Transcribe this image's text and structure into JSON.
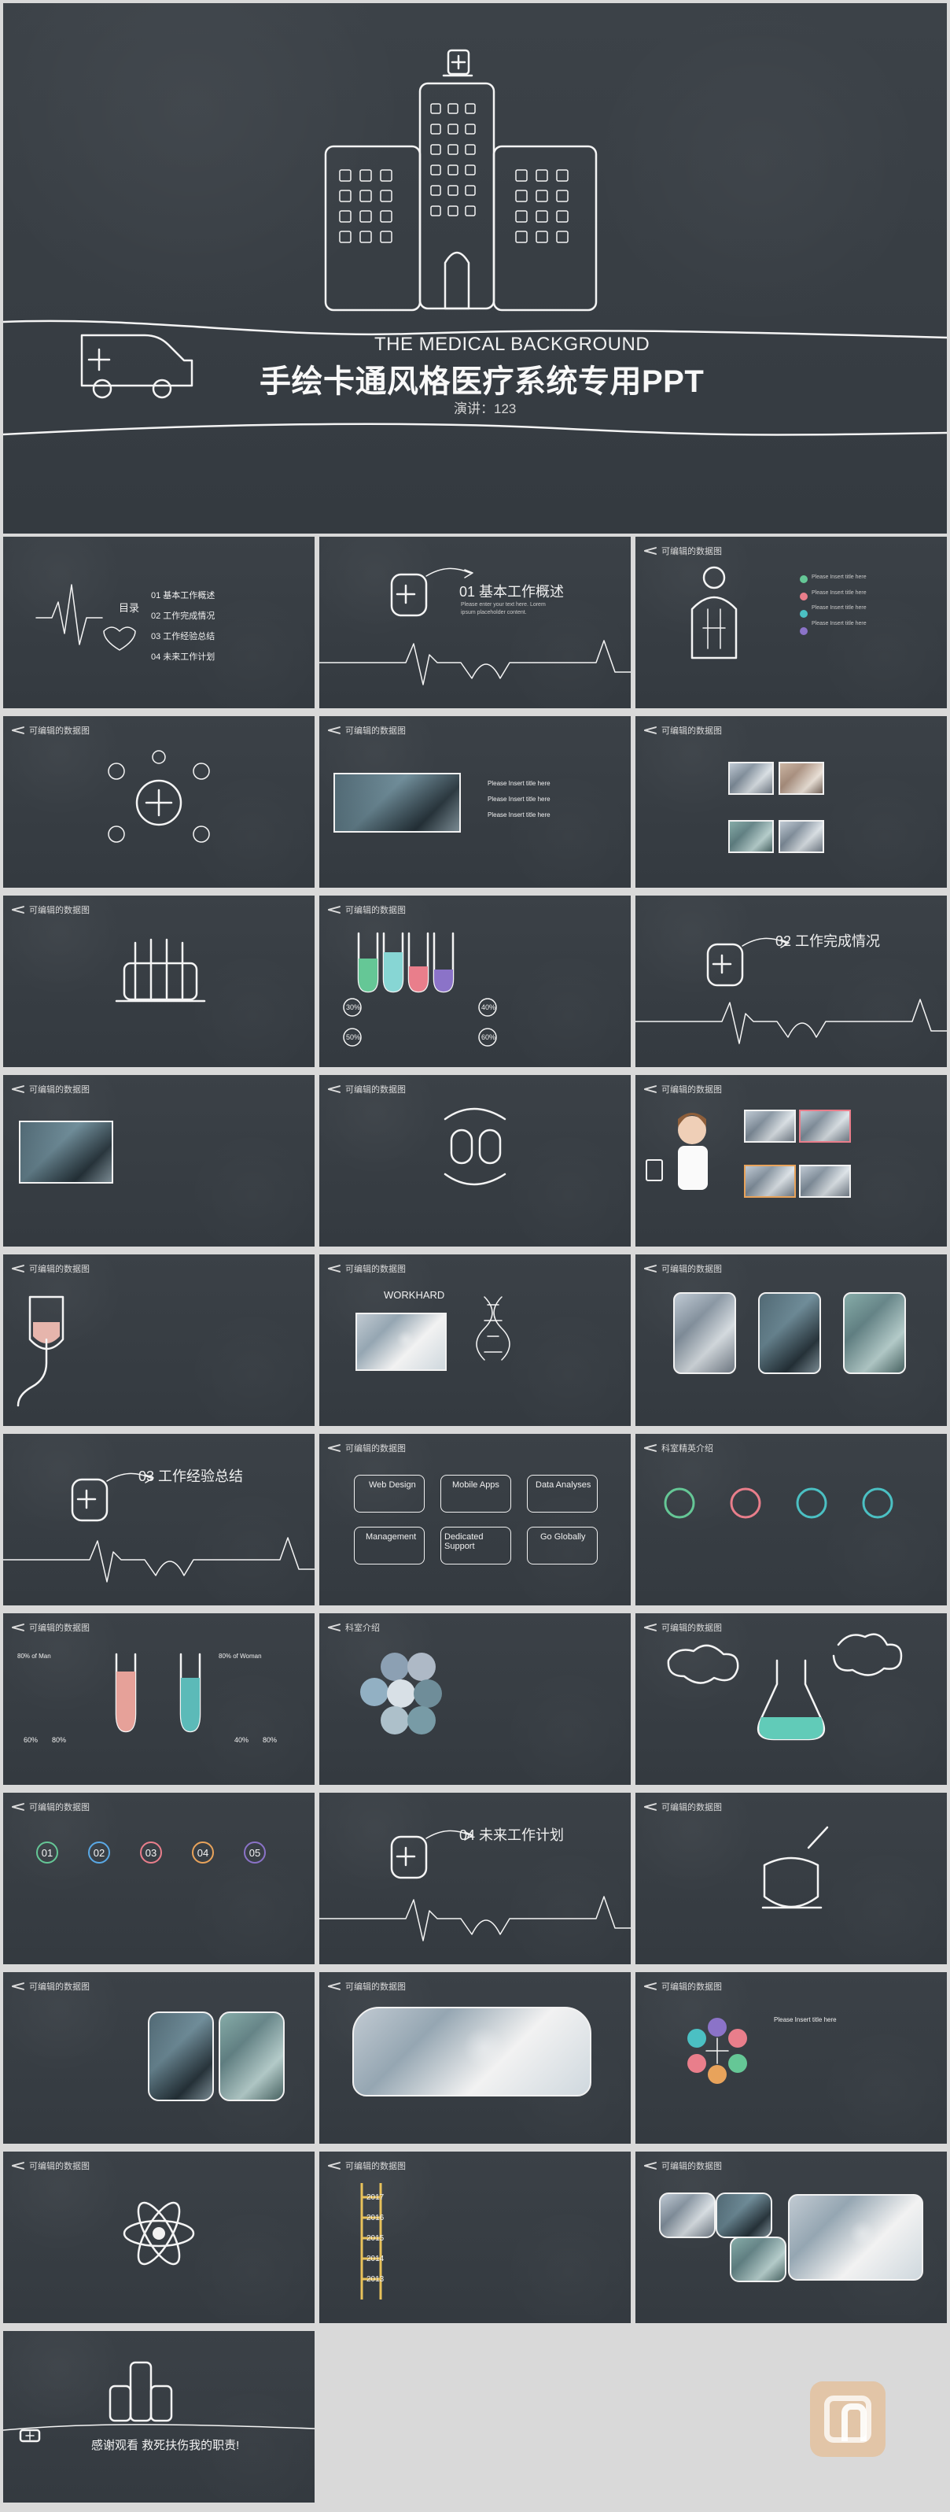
{
  "cover": {
    "en_title": "THE MEDICAL BACKGROUND",
    "title": "手绘卡通风格医疗系统专用PPT",
    "speaker": "演讲：123"
  },
  "common": {
    "header": "可编辑的数据图"
  },
  "slides": {
    "agenda": {
      "title": "目录",
      "items": [
        "01 基本工作概述",
        "02 工作完成情况",
        "03 工作经验总结",
        "04 未来工作计划"
      ]
    },
    "section1": {
      "title": "01 基本工作概述"
    },
    "section2": {
      "title": "02 工作完成情况"
    },
    "section3": {
      "title": "03 工作经验总结"
    },
    "section4": {
      "title": "04 未来工作计划"
    },
    "workhard": {
      "title": "WORKHARD"
    },
    "cards": [
      "Web Design",
      "Mobile Apps",
      "Data Analyses",
      "Management",
      "Dedicated Support",
      "Go Globally"
    ],
    "team_intro": "科室精英介绍",
    "department_intro": "科室介绍",
    "right_panel_title": "Please Insert title here",
    "percentages": [
      "30%",
      "40%",
      "50%",
      "60%"
    ],
    "stats_left": [
      "80% of Man",
      "60%",
      "80%"
    ],
    "stats_right": [
      "80% of Woman",
      "40%",
      "80%"
    ],
    "numbers": [
      "01",
      "02",
      "03",
      "04",
      "05"
    ],
    "years": [
      "2017",
      "2016",
      "2015",
      "2014",
      "2013"
    ],
    "final_lines": [
      "感谢观看 救死扶伤我的职责!"
    ]
  },
  "colors": {
    "board": "#3a4046",
    "chalk": "#f3f3f3",
    "green": "#65c796",
    "pink": "#e97e8b",
    "teal": "#4bc0c3",
    "orange": "#e8a35b",
    "violet": "#8b73c8"
  }
}
